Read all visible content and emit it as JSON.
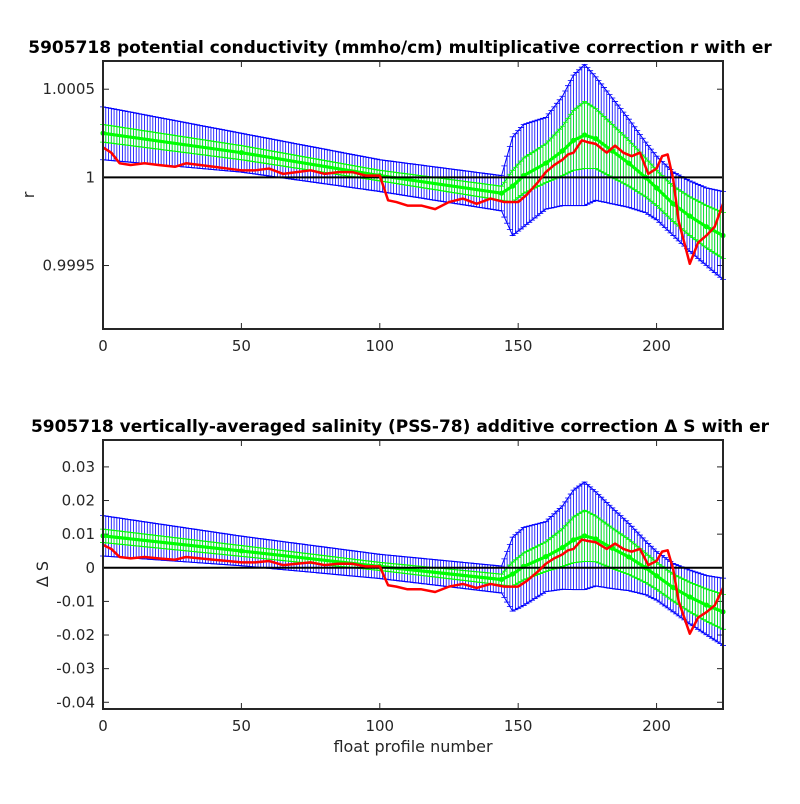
{
  "chart_data": [
    {
      "type": "line",
      "title": "5905718 potential conductivity (mmho/cm) multiplicative correction r with er",
      "xlabel": "",
      "ylabel": "r",
      "xlim": [
        0,
        224
      ],
      "ylim": [
        0.99914,
        1.00066
      ],
      "xticks": [
        0,
        50,
        100,
        150,
        200
      ],
      "yticks": [
        {
          "value": 0.9995,
          "label": "0.9995"
        },
        {
          "value": 1.0,
          "label": "1"
        },
        {
          "value": 1.0005,
          "label": "1.0005"
        }
      ],
      "reference_line": 1.0,
      "colors": {
        "fit": "#00ff00",
        "fit_error": "#0000ff",
        "raw": "#ff0000",
        "reference": "#000000"
      },
      "series": [
        {
          "role": "fit",
          "color": "#00ff00",
          "with_errorbars": true,
          "error_color": "#0000ff",
          "x": [
            0,
            50,
            100,
            144,
            148,
            152,
            160,
            166,
            170,
            174,
            178,
            184,
            190,
            196,
            200,
            206,
            212,
            218,
            224
          ],
          "y": [
            1.00025,
            1.00014,
            1.00001,
            0.99991,
            0.99995,
            1.00001,
            1.00008,
            1.00015,
            1.00021,
            1.00024,
            1.00022,
            1.00015,
            1.00008,
            1.0,
            0.99994,
            0.99985,
            0.99978,
            0.99972,
            0.99967
          ],
          "err": [
            0.00015,
            0.00011,
            9e-05,
            0.0001,
            0.00028,
            0.00029,
            0.00026,
            0.00031,
            0.00037,
            0.0004,
            0.00035,
            0.0003,
            0.00025,
            0.0002,
            0.00018,
            0.00018,
            0.0002,
            0.00022,
            0.00025
          ]
        },
        {
          "role": "fit",
          "color": "#00ff00",
          "with_errorbars": true,
          "error_color": "#00ff00",
          "x": [
            0,
            50,
            100,
            144,
            148,
            152,
            160,
            166,
            170,
            174,
            178,
            184,
            190,
            196,
            200,
            206,
            212,
            218,
            224
          ],
          "y": [
            1.00025,
            1.00014,
            1.00001,
            0.99991,
            0.99995,
            1.00001,
            1.00008,
            1.00015,
            1.00021,
            1.00024,
            1.00022,
            1.00015,
            1.00008,
            1.0,
            0.99994,
            0.99985,
            0.99978,
            0.99972,
            0.99967
          ],
          "err": [
            5e-05,
            4e-05,
            3e-05,
            4e-05,
            9e-05,
            0.0001,
            0.00011,
            0.00014,
            0.00017,
            0.00019,
            0.00017,
            0.00015,
            0.00013,
            0.00011,
            0.0001,
            0.0001,
            0.00011,
            0.00012,
            0.00013
          ]
        },
        {
          "role": "raw",
          "color": "#ff0000",
          "with_errorbars": false,
          "x": [
            0,
            3,
            6,
            10,
            15,
            20,
            26,
            30,
            35,
            40,
            45,
            50,
            55,
            60,
            65,
            70,
            75,
            80,
            85,
            90,
            95,
            100,
            103,
            106,
            110,
            115,
            120,
            125,
            130,
            135,
            140,
            145,
            150,
            153,
            157,
            160,
            163,
            166,
            168,
            170,
            173,
            175,
            178,
            182,
            185,
            188,
            191,
            194,
            197,
            200,
            202,
            204,
            206,
            208,
            210,
            212,
            215,
            218,
            221,
            224
          ],
          "y": [
            1.00017,
            1.00014,
            1.00008,
            1.00007,
            1.00008,
            1.00007,
            1.00006,
            1.00008,
            1.00007,
            1.00006,
            1.00005,
            1.00004,
            1.00004,
            1.00005,
            1.00002,
            1.00003,
            1.00004,
            1.00002,
            1.00003,
            1.00003,
            1.00001,
            1.00001,
            0.99987,
            0.99986,
            0.99984,
            0.99984,
            0.99982,
            0.99986,
            0.99988,
            0.99985,
            0.99988,
            0.99986,
            0.99986,
            0.9999,
            0.99997,
            1.00003,
            1.00007,
            1.0001,
            1.00013,
            1.00014,
            1.00021,
            1.0002,
            1.00019,
            1.00014,
            1.00018,
            1.00014,
            1.00012,
            1.00014,
            1.00002,
            1.00005,
            1.00012,
            1.00013,
            0.99999,
            0.99975,
            0.99963,
            0.99951,
            0.99963,
            0.99967,
            0.99972,
            0.99985
          ]
        }
      ]
    },
    {
      "type": "line",
      "title": "5905718 vertically-averaged salinity (PSS-78) additive correction Δ S with er",
      "xlabel": "float profile number",
      "ylabel": "Δ S",
      "xlim": [
        0,
        224
      ],
      "ylim": [
        -0.042,
        0.038
      ],
      "xticks": [
        0,
        50,
        100,
        150,
        200
      ],
      "yticks": [
        {
          "value": -0.04,
          "label": "-0.04"
        },
        {
          "value": -0.03,
          "label": "-0.03"
        },
        {
          "value": -0.02,
          "label": "-0.02"
        },
        {
          "value": -0.01,
          "label": "-0.01"
        },
        {
          "value": 0,
          "label": "0"
        },
        {
          "value": 0.01,
          "label": "0.01"
        },
        {
          "value": 0.02,
          "label": "0.02"
        },
        {
          "value": 0.03,
          "label": "0.03"
        }
      ],
      "reference_line": 0,
      "colors": {
        "fit": "#00ff00",
        "fit_error": "#0000ff",
        "raw": "#ff0000",
        "reference": "#000000"
      },
      "series": [
        {
          "role": "fit",
          "color": "#00ff00",
          "with_errorbars": true,
          "error_color": "#0000ff",
          "x": [
            0,
            50,
            100,
            144,
            148,
            152,
            160,
            166,
            170,
            174,
            178,
            184,
            190,
            196,
            200,
            206,
            212,
            218,
            224
          ],
          "y": [
            0.0095,
            0.005,
            0.0004,
            -0.0035,
            -0.0019,
            0.0004,
            0.0033,
            0.006,
            0.0083,
            0.0095,
            0.0086,
            0.0058,
            0.0032,
            0.0,
            -0.0024,
            -0.0059,
            -0.0087,
            -0.0111,
            -0.0131
          ],
          "err": [
            0.006,
            0.0044,
            0.0036,
            0.004,
            0.011,
            0.0116,
            0.0104,
            0.0124,
            0.0148,
            0.016,
            0.014,
            0.012,
            0.01,
            0.008,
            0.0072,
            0.0072,
            0.008,
            0.0088,
            0.01
          ]
        },
        {
          "role": "fit",
          "color": "#00ff00",
          "with_errorbars": true,
          "error_color": "#00ff00",
          "x": [
            0,
            50,
            100,
            144,
            148,
            152,
            160,
            166,
            170,
            174,
            178,
            184,
            190,
            196,
            200,
            206,
            212,
            218,
            224
          ],
          "y": [
            0.0095,
            0.005,
            0.0004,
            -0.0035,
            -0.0019,
            0.0004,
            0.0033,
            0.006,
            0.0083,
            0.0095,
            0.0086,
            0.0058,
            0.0032,
            0.0,
            -0.0024,
            -0.0059,
            -0.0087,
            -0.0111,
            -0.0131
          ],
          "err": [
            0.002,
            0.0016,
            0.0012,
            0.0016,
            0.0036,
            0.004,
            0.0044,
            0.0056,
            0.0068,
            0.0076,
            0.0068,
            0.006,
            0.0052,
            0.0044,
            0.004,
            0.004,
            0.0044,
            0.0048,
            0.0052
          ]
        },
        {
          "role": "raw",
          "color": "#ff0000",
          "with_errorbars": false,
          "x": [
            0,
            3,
            6,
            10,
            15,
            20,
            26,
            30,
            35,
            40,
            45,
            50,
            55,
            60,
            65,
            70,
            75,
            80,
            85,
            90,
            95,
            100,
            103,
            106,
            110,
            115,
            120,
            125,
            130,
            135,
            140,
            145,
            150,
            153,
            157,
            160,
            163,
            166,
            168,
            170,
            173,
            175,
            178,
            182,
            185,
            188,
            191,
            194,
            197,
            200,
            202,
            204,
            206,
            208,
            210,
            212,
            215,
            218,
            221,
            224
          ],
          "y": [
            0.0068,
            0.0056,
            0.0032,
            0.0028,
            0.0032,
            0.0028,
            0.0024,
            0.0032,
            0.0028,
            0.0024,
            0.002,
            0.0016,
            0.0016,
            0.002,
            0.0008,
            0.0012,
            0.0016,
            0.0008,
            0.0012,
            0.0012,
            0.0004,
            0.0004,
            -0.0052,
            -0.0056,
            -0.0064,
            -0.0064,
            -0.0072,
            -0.0056,
            -0.0048,
            -0.006,
            -0.0048,
            -0.0056,
            -0.0056,
            -0.004,
            -0.0012,
            0.0012,
            0.0028,
            0.004,
            0.0052,
            0.0056,
            0.0084,
            0.008,
            0.0076,
            0.0056,
            0.0072,
            0.0056,
            0.0048,
            0.0056,
            0.0008,
            0.002,
            0.0048,
            0.0052,
            -0.0004,
            -0.01,
            -0.0148,
            -0.0196,
            -0.0148,
            -0.0132,
            -0.0112,
            -0.006
          ]
        }
      ]
    }
  ]
}
